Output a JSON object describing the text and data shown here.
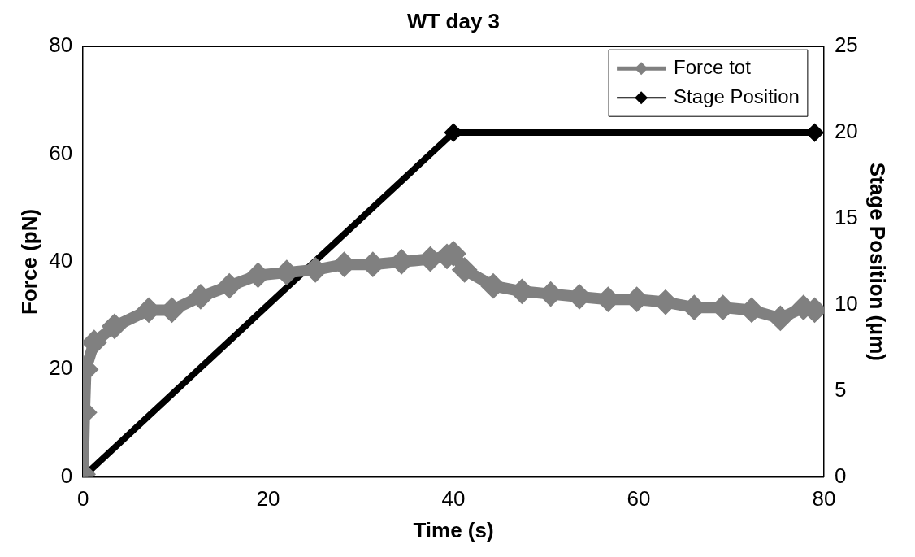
{
  "chart_data": {
    "type": "line",
    "title": "WT day 3",
    "xlabel": "Time (s)",
    "ylabel": "Force (pN)",
    "y2label": "Stage Position (μm)",
    "xlim": [
      0,
      80
    ],
    "xticks": [
      0,
      20,
      40,
      60,
      80
    ],
    "ylim": [
      0,
      80
    ],
    "yticks": [
      0,
      20,
      40,
      60,
      80
    ],
    "y2lim": [
      0,
      25
    ],
    "y2ticks": [
      0,
      5,
      10,
      15,
      20,
      25
    ],
    "grid": false,
    "legend": "top right",
    "marker": "diamond",
    "line_style": "solid",
    "series": [
      {
        "name": "Force tot",
        "color": "#808080",
        "x": [
          0,
          0.15,
          0.3,
          1.2,
          3.4,
          7.1,
          9.6,
          12.7,
          15.8,
          18.9,
          22,
          25.1,
          28.2,
          31.3,
          34.4,
          37.5,
          39.3,
          40,
          41.2,
          44.3,
          47.4,
          50.5,
          53.6,
          56.7,
          59.8,
          62.9,
          66,
          69.1,
          72.2,
          75.3,
          77.8,
          79
        ],
        "values": [
          0.5,
          12,
          20,
          25,
          28,
          31,
          31,
          33.5,
          35.5,
          37.5,
          38,
          38.5,
          39.5,
          39.5,
          40,
          40.5,
          41,
          41.5,
          38.5,
          35.5,
          34.5,
          34,
          33.5,
          33,
          33,
          32.5,
          31.5,
          31.5,
          31,
          29.5,
          31.5,
          31
        ]
      },
      {
        "name": "Stage Position",
        "color": "#000000",
        "axis": "y2",
        "x": [
          0,
          40,
          79
        ],
        "values": [
          0,
          20,
          20
        ]
      }
    ]
  }
}
